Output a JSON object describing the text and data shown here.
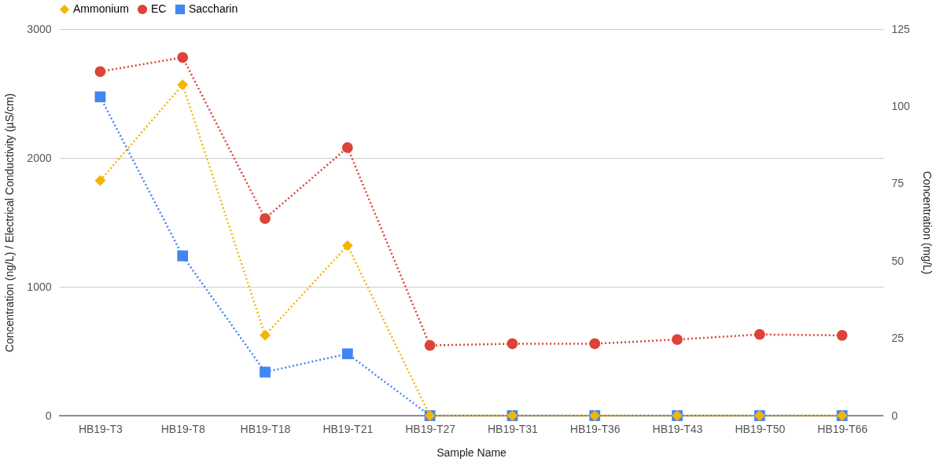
{
  "chart_data": {
    "type": "line",
    "xlabel": "Sample Name",
    "ylabel": "Concentration (ng/L) / Electrical Conductivity (µS/cm)",
    "y2label": "Concentration (mg/L)",
    "categories": [
      "HB19-T3",
      "HB19-T8",
      "HB19-T18",
      "HB19-T21",
      "HB19-T27",
      "HB19-T31",
      "HB19-T36",
      "HB19-T43",
      "HB19-T50",
      "HB19-T66"
    ],
    "series": [
      {
        "name": "Ammonium",
        "color": "#f4b400",
        "marker": "diamond",
        "axis": "y2",
        "values": [
          76,
          107,
          26,
          55,
          0,
          0,
          0,
          0,
          0,
          0
        ]
      },
      {
        "name": "EC",
        "color": "#db4437",
        "marker": "circle",
        "values": [
          2670,
          2780,
          1530,
          2080,
          545,
          558,
          558,
          591,
          630,
          623
        ]
      },
      {
        "name": "Saccharin",
        "color": "#4285f4",
        "marker": "square",
        "values": [
          2474,
          1240,
          338,
          480,
          0,
          0,
          0,
          0,
          0,
          0
        ]
      }
    ],
    "ylim": [
      0,
      3000
    ],
    "yticks": [
      0,
      1000,
      2000,
      3000
    ],
    "y2lim": [
      0,
      125
    ],
    "y2ticks": [
      0,
      25,
      50,
      75,
      100,
      125
    ],
    "line_style": "dotted",
    "grid": "y",
    "legend": "top"
  }
}
